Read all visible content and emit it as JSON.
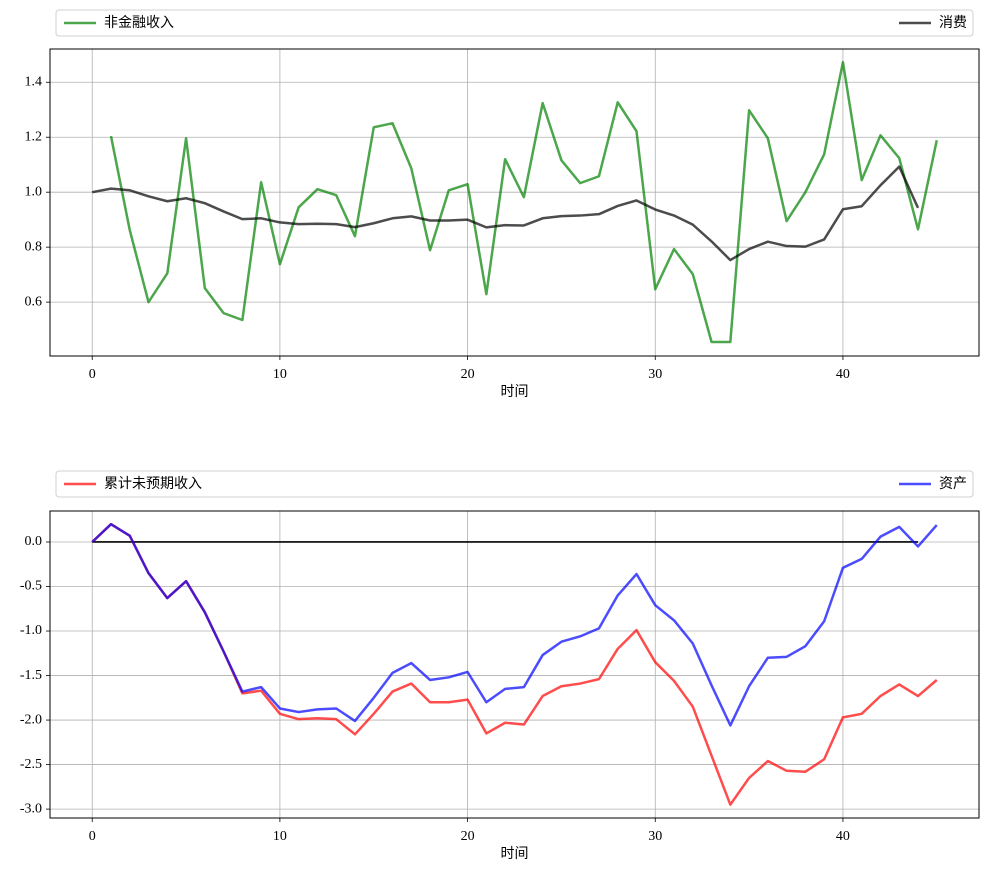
{
  "chart_data": [
    {
      "type": "line",
      "xlabel": "时间",
      "x": [
        0,
        1,
        2,
        3,
        4,
        5,
        6,
        7,
        8,
        9,
        10,
        11,
        12,
        13,
        14,
        15,
        16,
        17,
        18,
        19,
        20,
        21,
        22,
        23,
        24,
        25,
        26,
        27,
        28,
        29,
        30,
        31,
        32,
        33,
        34,
        35,
        36,
        37,
        38,
        39,
        40,
        41,
        42,
        43,
        44,
        45
      ],
      "series": [
        {
          "name": "非金融收入",
          "color": "#008000",
          "alpha": 0.7,
          "values": [
            null,
            1.204,
            0.862,
            0.6,
            0.705,
            1.196,
            0.651,
            0.56,
            0.535,
            1.036,
            0.738,
            0.945,
            1.011,
            0.989,
            0.84,
            1.236,
            1.251,
            1.087,
            0.789,
            1.007,
            1.029,
            0.629,
            1.12,
            0.982,
            1.324,
            1.116,
            1.033,
            1.058,
            1.327,
            1.222,
            0.647,
            0.793,
            0.702,
            0.455,
            0.455,
            1.298,
            1.196,
            0.895,
            1.0,
            1.138,
            1.473,
            1.044,
            1.207,
            1.124,
            0.865,
            1.189
          ]
        },
        {
          "name": "消费",
          "color": "#000000",
          "alpha": 0.7,
          "values": [
            1.0,
            1.013,
            1.007,
            0.985,
            0.967,
            0.978,
            0.96,
            0.93,
            0.902,
            0.905,
            0.89,
            0.884,
            0.885,
            0.884,
            0.873,
            0.887,
            0.905,
            0.912,
            0.897,
            0.897,
            0.9,
            0.872,
            0.88,
            0.879,
            0.905,
            0.913,
            0.915,
            0.92,
            0.95,
            0.97,
            0.937,
            0.915,
            0.882,
            0.821,
            0.753,
            0.793,
            0.82,
            0.804,
            0.802,
            0.828,
            0.938,
            0.949,
            1.025,
            1.093,
            0.943,
            null
          ]
        }
      ],
      "xlim": [
        -2.25,
        47.25
      ],
      "xticks": [
        0,
        10,
        20,
        30,
        40
      ],
      "ylim": [
        0.404,
        1.521
      ],
      "yticks": [
        0.6,
        0.8,
        {
          "value": 1,
          "label": "1.0"
        },
        1.2,
        1.4
      ],
      "grid": true,
      "legend": "top-expand"
    },
    {
      "type": "line",
      "xlabel": "时间",
      "x": [
        0,
        1,
        2,
        3,
        4,
        5,
        6,
        7,
        8,
        9,
        10,
        11,
        12,
        13,
        14,
        15,
        16,
        17,
        18,
        19,
        20,
        21,
        22,
        23,
        24,
        25,
        26,
        27,
        28,
        29,
        30,
        31,
        32,
        33,
        34,
        35,
        36,
        37,
        38,
        39,
        40,
        41,
        42,
        43,
        44,
        45
      ],
      "series": [
        {
          "color": "#000000",
          "alpha": 1,
          "values": [
            0,
            0,
            0,
            0,
            0,
            0,
            0,
            0,
            0,
            0,
            0,
            0,
            0,
            0,
            0,
            0,
            0,
            0,
            0,
            0,
            0,
            0,
            0,
            0,
            0,
            0,
            0,
            0,
            0,
            0,
            0,
            0,
            0,
            0,
            0,
            0,
            0,
            0,
            0,
            0,
            0,
            0,
            0,
            0,
            0,
            null
          ]
        },
        {
          "name": "累计未预期收入",
          "color": "#ff0000",
          "alpha": 0.7,
          "values": [
            0,
            0.2,
            0.07,
            -0.35,
            -0.63,
            -0.44,
            -0.79,
            -1.23,
            -1.7,
            -1.67,
            -1.93,
            -1.99,
            -1.98,
            -1.99,
            -2.16,
            -1.93,
            -1.68,
            -1.59,
            -1.8,
            -1.8,
            -1.77,
            -2.15,
            -2.03,
            -2.05,
            -1.73,
            -1.62,
            -1.59,
            -1.54,
            -1.2,
            -0.99,
            -1.35,
            -1.56,
            -1.85,
            -2.4,
            -2.95,
            -2.65,
            -2.46,
            -2.57,
            -2.58,
            -2.44,
            -1.97,
            -1.93,
            -1.73,
            -1.6,
            -1.73,
            -1.55
          ]
        },
        {
          "name": "资产",
          "color": "#0000ff",
          "alpha": 0.7,
          "values": [
            0,
            0.2,
            0.07,
            -0.35,
            -0.63,
            -0.44,
            -0.79,
            -1.23,
            -1.68,
            -1.63,
            -1.87,
            -1.91,
            -1.88,
            -1.87,
            -2.01,
            -1.75,
            -1.47,
            -1.36,
            -1.55,
            -1.52,
            -1.46,
            -1.8,
            -1.65,
            -1.63,
            -1.27,
            -1.12,
            -1.06,
            -0.97,
            -0.6,
            -0.36,
            -0.71,
            -0.88,
            -1.14,
            -1.61,
            -2.06,
            -1.62,
            -1.3,
            -1.29,
            -1.17,
            -0.89,
            -0.29,
            -0.19,
            0.06,
            0.17,
            -0.05,
            0.19
          ]
        }
      ],
      "xlim": [
        -2.25,
        47.25
      ],
      "xticks": [
        0,
        10,
        20,
        30,
        40
      ],
      "ylim": [
        -3.1,
        0.348
      ],
      "yticks": [
        {
          "value": 0,
          "label": "0.0"
        },
        -0.5,
        {
          "value": -1,
          "label": "-1.0"
        },
        -1.5,
        {
          "value": -2,
          "label": "-2.0"
        },
        -2.5,
        {
          "value": -3,
          "label": "-3.0"
        }
      ],
      "grid": true,
      "legend": "top-expand"
    }
  ]
}
